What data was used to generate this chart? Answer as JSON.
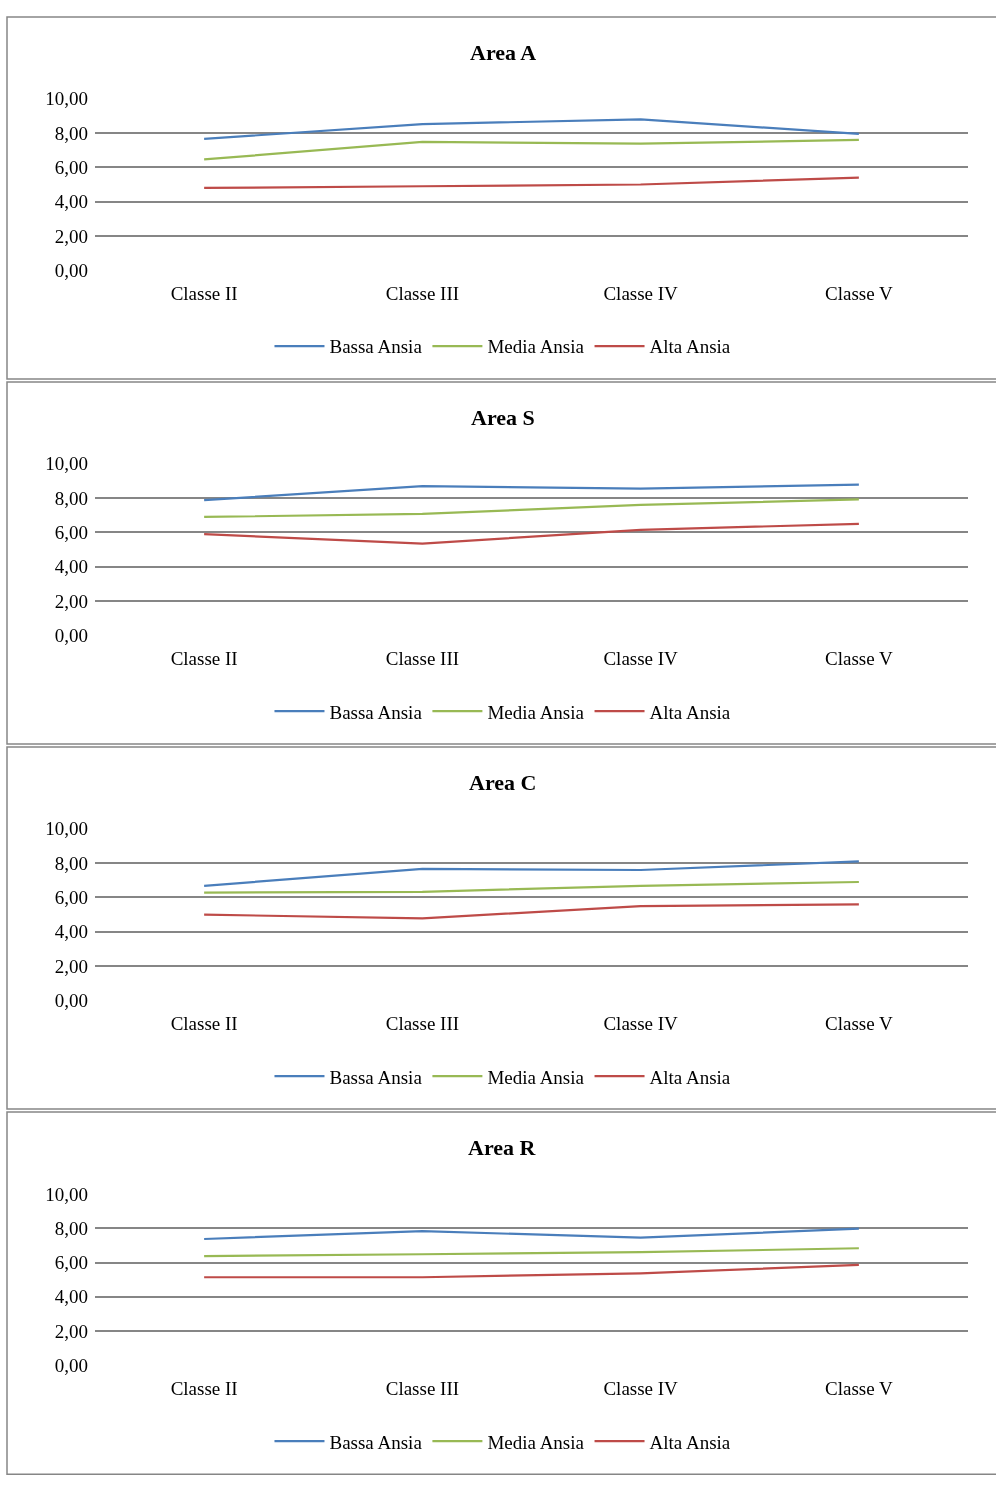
{
  "chart_data": [
    {
      "type": "line",
      "title": "Area A",
      "categories": [
        "Classe II",
        "Classe III",
        "Classe IV",
        "Classe V"
      ],
      "ylim": [
        0,
        10
      ],
      "yticks": [
        {
          "value": 0,
          "label": "0,00"
        },
        {
          "value": 2,
          "label": "2,00"
        },
        {
          "value": 4,
          "label": "4,00"
        },
        {
          "value": 6,
          "label": "6,00"
        },
        {
          "value": 8,
          "label": "8,00"
        },
        {
          "value": 10,
          "label": "10,00"
        }
      ],
      "grid": "y",
      "legend": "bottom",
      "marker": "none",
      "line_style": "solid",
      "series": [
        {
          "name": "Bassa Ansia",
          "color": "#4a7ebb",
          "values": [
            7.66,
            8.52,
            8.8,
            7.95
          ]
        },
        {
          "name": "Media Ansia",
          "color": "#98b954",
          "values": [
            6.46,
            7.48,
            7.38,
            7.6
          ]
        },
        {
          "name": "Alta Ansia",
          "color": "#be4b48",
          "values": [
            4.8,
            4.9,
            5.0,
            5.4
          ]
        }
      ]
    },
    {
      "type": "line",
      "title": "Area S",
      "categories": [
        "Classe II",
        "Classe III",
        "Classe IV",
        "Classe V"
      ],
      "ylim": [
        0,
        10
      ],
      "yticks": [
        {
          "value": 0,
          "label": "0,00"
        },
        {
          "value": 2,
          "label": "2,00"
        },
        {
          "value": 4,
          "label": "4,00"
        },
        {
          "value": 6,
          "label": "6,00"
        },
        {
          "value": 8,
          "label": "8,00"
        },
        {
          "value": 10,
          "label": "10,00"
        }
      ],
      "grid": "y",
      "legend": "bottom",
      "marker": "none",
      "line_style": "solid",
      "series": [
        {
          "name": "Bassa Ansia",
          "color": "#4a7ebb",
          "values": [
            7.88,
            8.7,
            8.55,
            8.78
          ]
        },
        {
          "name": "Media Ansia",
          "color": "#98b954",
          "values": [
            6.9,
            7.08,
            7.6,
            7.92
          ]
        },
        {
          "name": "Alta Ansia",
          "color": "#be4b48",
          "values": [
            5.9,
            5.35,
            6.15,
            6.5
          ]
        }
      ]
    },
    {
      "type": "line",
      "title": "Area C",
      "categories": [
        "Classe II",
        "Classe III",
        "Classe IV",
        "Classe V"
      ],
      "ylim": [
        0,
        10
      ],
      "yticks": [
        {
          "value": 0,
          "label": "0,00"
        },
        {
          "value": 2,
          "label": "2,00"
        },
        {
          "value": 4,
          "label": "4,00"
        },
        {
          "value": 6,
          "label": "6,00"
        },
        {
          "value": 8,
          "label": "8,00"
        },
        {
          "value": 10,
          "label": "10,00"
        }
      ],
      "grid": "y",
      "legend": "bottom",
      "marker": "none",
      "line_style": "solid",
      "series": [
        {
          "name": "Bassa Ansia",
          "color": "#4a7ebb",
          "values": [
            6.68,
            7.66,
            7.6,
            8.1
          ]
        },
        {
          "name": "Media Ansia",
          "color": "#98b954",
          "values": [
            6.28,
            6.33,
            6.68,
            6.9
          ]
        },
        {
          "name": "Alta Ansia",
          "color": "#be4b48",
          "values": [
            5.0,
            4.78,
            5.5,
            5.6
          ]
        }
      ]
    },
    {
      "type": "line",
      "title": "Area R",
      "categories": [
        "Classe II",
        "Classe III",
        "Classe IV",
        "Classe V"
      ],
      "ylim": [
        0,
        10
      ],
      "yticks": [
        {
          "value": 0,
          "label": "0,00"
        },
        {
          "value": 2,
          "label": "2,00"
        },
        {
          "value": 4,
          "label": "4,00"
        },
        {
          "value": 6,
          "label": "6,00"
        },
        {
          "value": 8,
          "label": "8,00"
        },
        {
          "value": 10,
          "label": "10,00"
        }
      ],
      "grid": "y",
      "legend": "bottom",
      "marker": "none",
      "line_style": "solid",
      "series": [
        {
          "name": "Bassa Ansia",
          "color": "#4a7ebb",
          "values": [
            7.37,
            7.83,
            7.45,
            7.97
          ]
        },
        {
          "name": "Media Ansia",
          "color": "#98b954",
          "values": [
            6.37,
            6.48,
            6.6,
            6.83
          ]
        },
        {
          "name": "Alta Ansia",
          "color": "#be4b48",
          "values": [
            5.14,
            5.14,
            5.37,
            5.86
          ]
        }
      ]
    }
  ]
}
